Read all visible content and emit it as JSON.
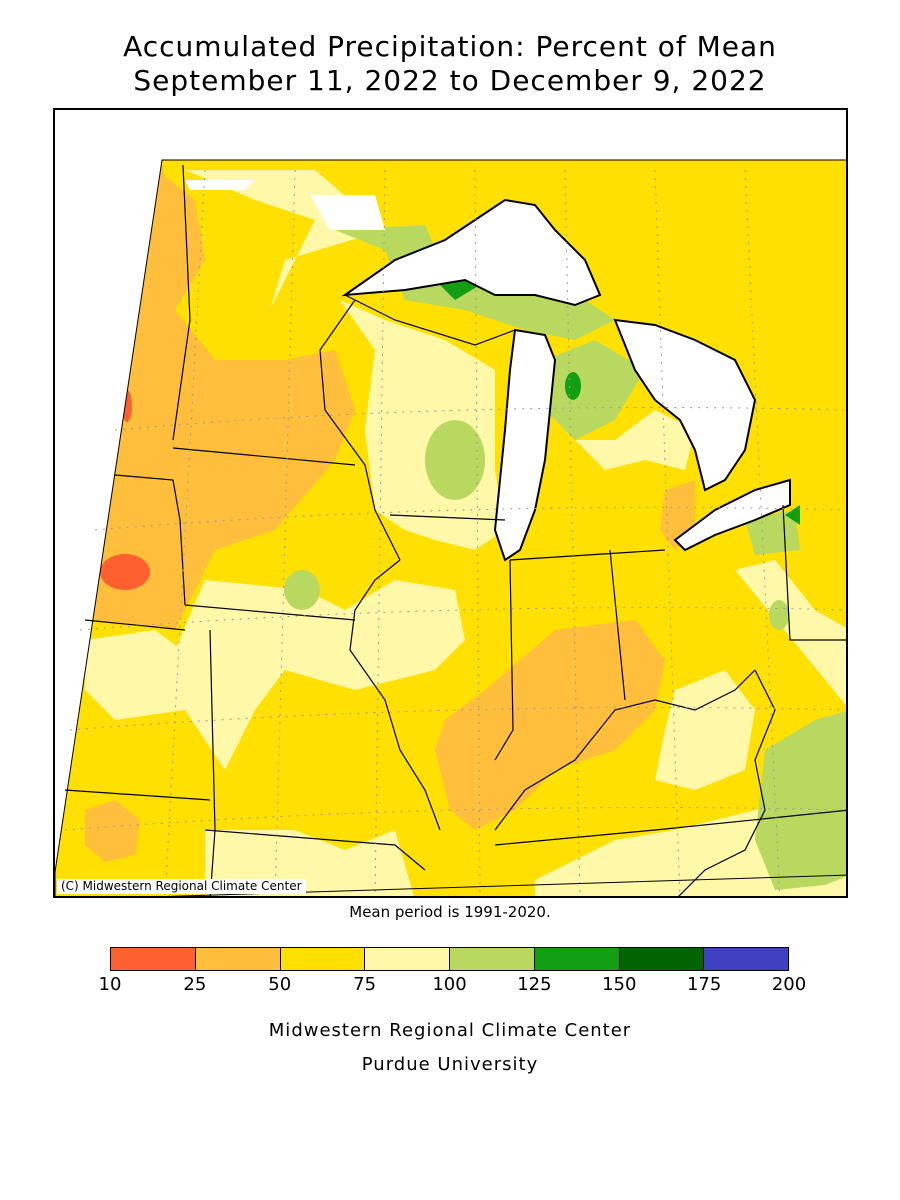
{
  "title": {
    "line1": "Accumulated Precipitation: Percent of Mean",
    "line2": "September 11, 2022 to December 9, 2022"
  },
  "map": {
    "copyright": "(C) Midwestern Regional Climate Center",
    "regions_shown": [
      "Minnesota",
      "Wisconsin",
      "Michigan",
      "Iowa",
      "Illinois",
      "Indiana",
      "Ohio",
      "Missouri",
      "Kentucky"
    ]
  },
  "mean_period": "Mean period is 1991-2020.",
  "legend": {
    "ticks": [
      "10",
      "25",
      "50",
      "75",
      "100",
      "125",
      "150",
      "175",
      "200"
    ],
    "bins": [
      {
        "range": "10-25",
        "color": "#ff6030"
      },
      {
        "range": "25-50",
        "color": "#ffbe3c"
      },
      {
        "range": "50-75",
        "color": "#ffe000"
      },
      {
        "range": "75-100",
        "color": "#fff8a8"
      },
      {
        "range": "100-125",
        "color": "#b8d860"
      },
      {
        "range": "125-150",
        "color": "#12a012"
      },
      {
        "range": "150-175",
        "color": "#006400"
      },
      {
        "range": "175-200",
        "color": "#4040c0"
      }
    ]
  },
  "credits": {
    "line1": "Midwestern Regional Climate Center",
    "line2": "Purdue University"
  }
}
